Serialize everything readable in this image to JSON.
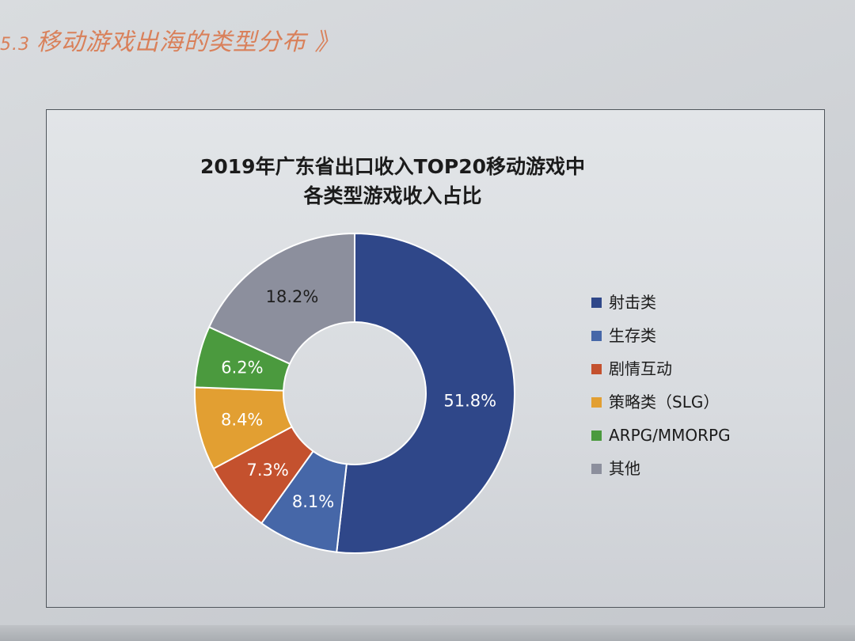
{
  "section": {
    "number": "5.3",
    "title": "移动游戏出海的类型分布 》"
  },
  "chart_data": {
    "type": "pie",
    "donut": true,
    "title_lines": [
      "2019年广东省出口收入TOP20移动游戏中",
      "各类型游戏收入占比"
    ],
    "legend_position": "right",
    "slices": [
      {
        "name": "射击类",
        "value": 51.8,
        "label": "51.8%",
        "color": "#2f4789"
      },
      {
        "name": "生存类",
        "value": 8.1,
        "label": "8.1%",
        "color": "#4667a8"
      },
      {
        "name": "剧情互动",
        "value": 7.3,
        "label": "7.3%",
        "color": "#c4512e"
      },
      {
        "name": "策略类（SLG）",
        "value": 8.4,
        "label": "8.4%",
        "color": "#e29f32"
      },
      {
        "name": "ARPG/MMORPG",
        "value": 6.2,
        "label": "6.2%",
        "color": "#4b9a3e"
      },
      {
        "name": "其他",
        "value": 18.2,
        "label": "18.2%",
        "color": "#8c8f9d"
      }
    ]
  }
}
